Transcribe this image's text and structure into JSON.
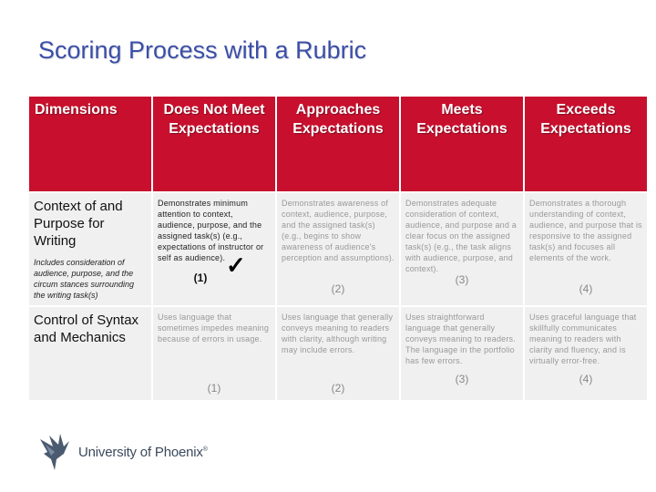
{
  "title": "Scoring Process with a Rubric",
  "headers": [
    "Dimensions",
    "Does Not Meet Expectations",
    "Approaches Expectations",
    "Meets Expectations",
    "Exceeds Expectations"
  ],
  "rows": [
    {
      "label": "Context of and Purpose for Writing",
      "sublabel": "Includes consideration of audience, purpose, and the circum stances surrounding the writing task(s)",
      "cells": [
        {
          "text": "Demonstrates minimum attention to context, audience, purpose, and the assigned task(s) (e.g., expectations of instructor or self as audience).",
          "score": "(1)",
          "selected": true
        },
        {
          "text": "Demonstrates awareness of context, audience, purpose, and the assigned task(s) (e.g., begins to show awareness of audience's perception and assumptions).",
          "score": "(2)",
          "selected": false
        },
        {
          "text": "Demonstrates adequate consideration of context, audience, and purpose and a clear focus on the assigned task(s) (e.g., the task aligns with audience, purpose, and context).",
          "score": "(3)",
          "selected": false
        },
        {
          "text": "Demonstrates a thorough understanding of context, audience, and purpose that is responsive to the assigned task(s) and focuses all elements of the work.",
          "score": "(4)",
          "selected": false
        }
      ]
    },
    {
      "label": "Control of Syntax and Mechanics",
      "sublabel": "",
      "cells": [
        {
          "text": "Uses language that sometimes impedes meaning because of errors in usage.",
          "score": "(1)",
          "selected": false
        },
        {
          "text": "Uses language that generally conveys meaning to readers with clarity, although writing may include errors.",
          "score": "(2)",
          "selected": false
        },
        {
          "text": "Uses straightforward language that generally conveys meaning to readers. The language in the portfolio has few errors.",
          "score": "(3)",
          "selected": false
        },
        {
          "text": "Uses graceful language that skillfully communicates meaning to readers with clarity and fluency, and is virtually error-free.",
          "score": "(4)",
          "selected": false
        }
      ]
    }
  ],
  "check_mark": "✓",
  "logo": {
    "name": "University of Phoenix",
    "mark": "®"
  },
  "colors": {
    "header_bg": "#c8102e",
    "cell_bg": "#f0f0f0",
    "title": "#3a4ea8"
  }
}
